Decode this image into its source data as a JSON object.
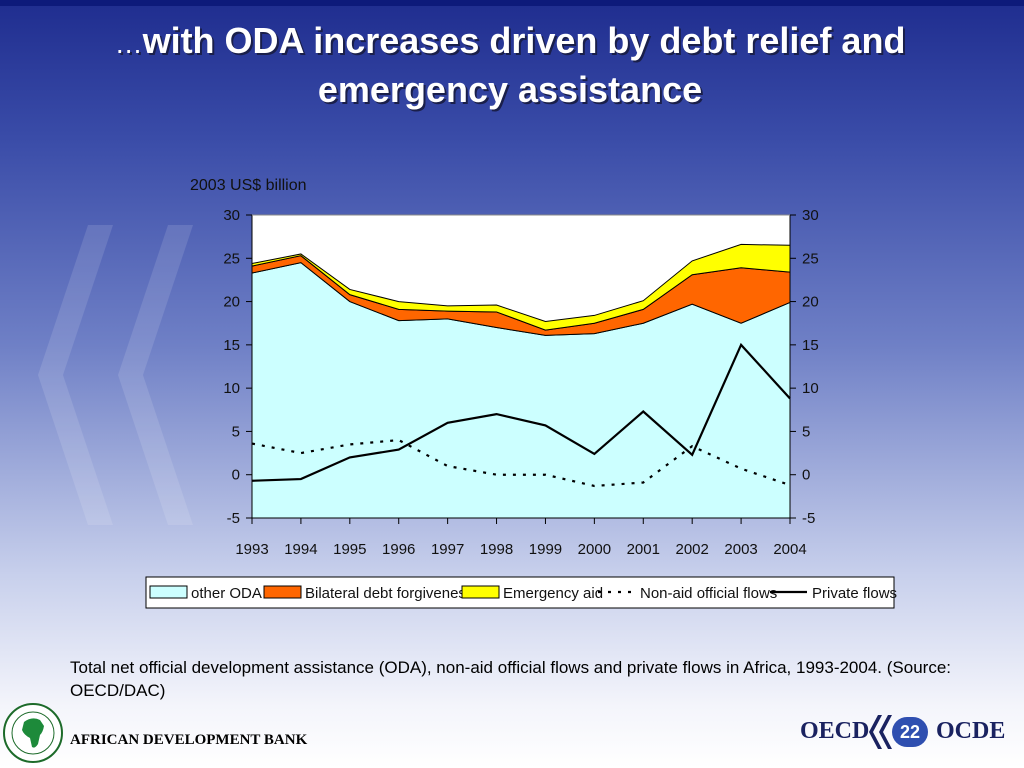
{
  "slide": {
    "title_prefix": "…",
    "title_main": "with ODA increases driven by debt relief and emergency assistance",
    "caption": "Total net official development assistance (ODA), non-aid official flows and private flows in Africa, 1993-2004.  (Source: OECD/DAC)",
    "page_number": "22"
  },
  "footer": {
    "bank_name": "AFRICAN DEVELOPMENT BANK",
    "oecd_left": "OECD",
    "oecd_right": "OCDE"
  },
  "chart_data": {
    "type": "area",
    "unit_label": "2003 US$ billion",
    "categories": [
      "1993",
      "1994",
      "1995",
      "1996",
      "1997",
      "1998",
      "1999",
      "2000",
      "2001",
      "2002",
      "2003",
      "2004"
    ],
    "ylim": [
      -5,
      30
    ],
    "yticks": [
      -5,
      0,
      5,
      10,
      15,
      20,
      25,
      30
    ],
    "grid": false,
    "stacked_series": [
      {
        "name": "other ODA",
        "color": "#ccffff",
        "values": [
          23.3,
          24.5,
          20.0,
          17.8,
          18.0,
          17.0,
          16.1,
          16.3,
          17.5,
          19.7,
          17.5,
          19.9
        ]
      },
      {
        "name": "Bilateral debt forgiveness",
        "color": "#ff6600",
        "values": [
          0.8,
          0.8,
          0.8,
          1.3,
          0.9,
          1.8,
          0.6,
          1.2,
          1.6,
          3.4,
          6.4,
          3.5
        ]
      },
      {
        "name": "Emergency aid",
        "color": "#ffff00",
        "values": [
          0.3,
          0.2,
          0.6,
          0.9,
          0.6,
          0.8,
          1.0,
          0.9,
          1.0,
          1.6,
          2.7,
          3.1
        ]
      }
    ],
    "line_series": [
      {
        "name": "Non-aid official flows",
        "style": "dotted",
        "color": "#000000",
        "values": [
          3.6,
          2.5,
          3.5,
          4.0,
          1.0,
          0.0,
          0.0,
          -1.3,
          -0.9,
          3.3,
          0.7,
          -1.2
        ]
      },
      {
        "name": "Private flows",
        "style": "solid",
        "color": "#000000",
        "values": [
          -0.7,
          -0.5,
          2.0,
          2.9,
          6.0,
          7.0,
          5.7,
          2.4,
          7.3,
          2.3,
          15.0,
          8.8
        ]
      }
    ],
    "legend_position": "bottom"
  }
}
